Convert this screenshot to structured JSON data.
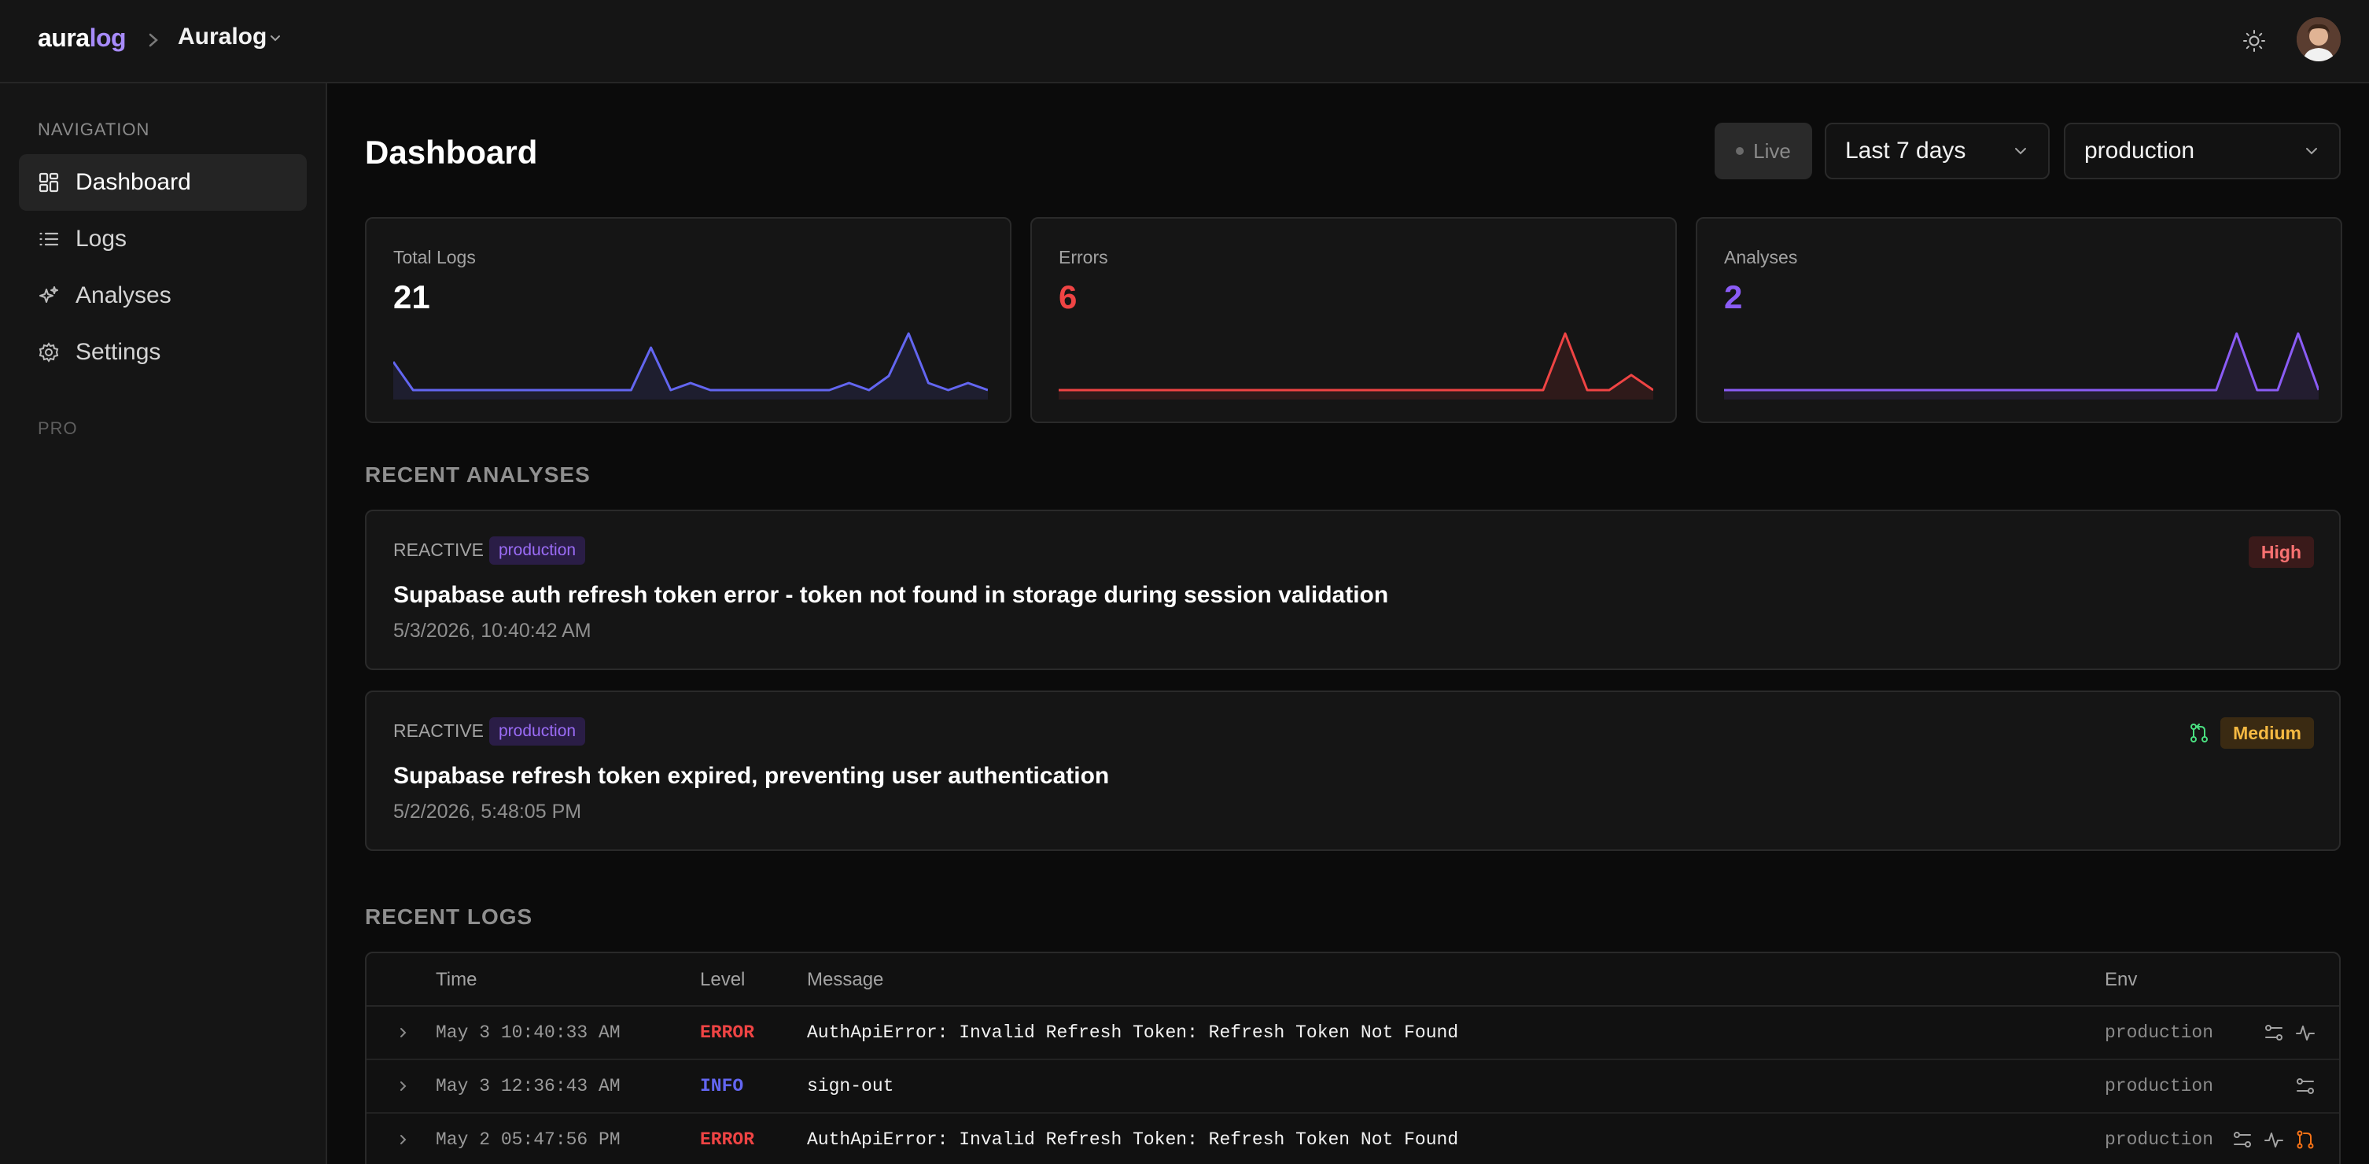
{
  "topbar": {
    "brand_main": "aura",
    "brand_accent": "log",
    "project": "Auralog"
  },
  "sidebar": {
    "navigation_heading": "NAVIGATION",
    "items": [
      {
        "label": "Dashboard",
        "icon": "dashboard-icon",
        "active": true
      },
      {
        "label": "Logs",
        "icon": "list-icon",
        "active": false
      },
      {
        "label": "Analyses",
        "icon": "sparkles-icon",
        "active": false
      },
      {
        "label": "Settings",
        "icon": "gear-icon",
        "active": false
      }
    ],
    "pro_heading": "PRO"
  },
  "header": {
    "title": "Dashboard",
    "live_label": "Live",
    "range_select": "Last 7 days",
    "env_select": "production"
  },
  "stats": [
    {
      "label": "Total Logs",
      "value": "21",
      "color": "#ffffff",
      "spark_color": "#6366f1",
      "spark": [
        2,
        0,
        0,
        0,
        0,
        0,
        0,
        0,
        0,
        0,
        0,
        0,
        0,
        3,
        0,
        0.5,
        0,
        0,
        0,
        0,
        0,
        0,
        0,
        0.5,
        0,
        1,
        4,
        0.5,
        0,
        0.5,
        0
      ]
    },
    {
      "label": "Errors",
      "value": "6",
      "color": "#ef4444",
      "spark_color": "#ef4444",
      "spark": [
        0,
        0,
        0,
        0,
        0,
        0,
        0,
        0,
        0,
        0,
        0,
        0,
        0,
        0,
        0,
        0,
        0,
        0,
        0,
        0,
        0,
        0,
        0,
        3,
        0,
        0,
        0.8,
        0
      ]
    },
    {
      "label": "Analyses",
      "value": "2",
      "color": "#8b5cf6",
      "spark_color": "#8b5cf6",
      "spark": [
        0,
        0,
        0,
        0,
        0,
        0,
        0,
        0,
        0,
        0,
        0,
        0,
        0,
        0,
        0,
        0,
        0,
        0,
        0,
        0,
        0,
        0,
        0,
        0,
        0,
        1,
        0,
        0,
        1,
        0
      ]
    }
  ],
  "recent_analyses": {
    "title": "RECENT ANALYSES",
    "items": [
      {
        "type": "REACTIVE",
        "env": "production",
        "title": "Supabase auth refresh token error - token not found in storage during session validation",
        "date": "5/3/2026, 10:40:42 AM",
        "severity": "High",
        "severity_color": "#f87171",
        "severity_bg": "#3a1a1a",
        "has_pr": false
      },
      {
        "type": "REACTIVE",
        "env": "production",
        "title": "Supabase refresh token expired, preventing user authentication",
        "date": "5/2/2026, 5:48:05 PM",
        "severity": "Medium",
        "severity_color": "#f5b942",
        "severity_bg": "#3a2a12",
        "has_pr": true
      }
    ]
  },
  "recent_logs": {
    "title": "RECENT LOGS",
    "columns": {
      "time": "Time",
      "level": "Level",
      "message": "Message",
      "env": "Env"
    },
    "rows": [
      {
        "time": "May 3 10:40:33 AM",
        "level": "ERROR",
        "level_color": "#ef4444",
        "message": "AuthApiError: Invalid Refresh Token: Refresh Token Not Found",
        "env": "production",
        "icons": [
          "trace-icon",
          "activity-icon"
        ]
      },
      {
        "time": "May 3 12:36:43 AM",
        "level": "INFO",
        "level_color": "#6366f1",
        "message": "sign-out",
        "env": "production",
        "icons": [
          "trace-icon"
        ]
      },
      {
        "time": "May 2 05:47:56 PM",
        "level": "ERROR",
        "level_color": "#ef4444",
        "message": "AuthApiError: Invalid Refresh Token: Refresh Token Not Found",
        "env": "production",
        "icons": [
          "trace-icon",
          "activity-icon",
          "pull-request-icon"
        ]
      }
    ]
  }
}
